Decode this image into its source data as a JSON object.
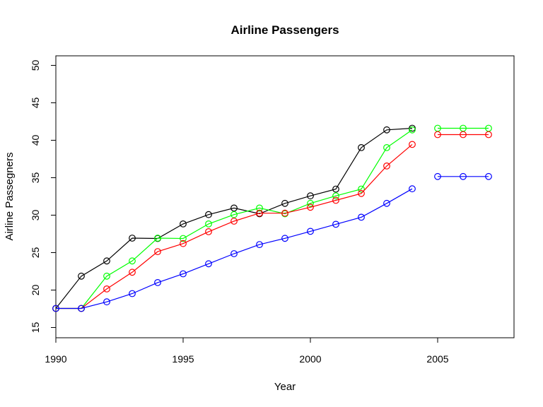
{
  "chart_data": {
    "type": "line",
    "title": "Airline Passengers",
    "xlabel": "Year",
    "ylabel": "Airline Passegners",
    "xlim": [
      1990,
      2008
    ],
    "ylim": [
      15,
      50
    ],
    "x_ticks": [
      "1990",
      "1995",
      "2000",
      "2005"
    ],
    "y_ticks": [
      "15",
      "20",
      "25",
      "30",
      "35",
      "40",
      "45",
      "50"
    ],
    "grid": false,
    "legend": "none",
    "series": [
      {
        "color": "#000000",
        "x": [
          1990,
          1991,
          1992,
          1993,
          1994,
          1995,
          1996,
          1997,
          1998,
          1999,
          2000,
          2001,
          2002,
          2003,
          2004
        ],
        "values": [
          17.55,
          21.86,
          23.89,
          26.93,
          26.89,
          28.83,
          30.08,
          30.95,
          30.19,
          31.58,
          32.58,
          33.48,
          39.02,
          41.39,
          41.6
        ],
        "connected": true
      },
      {
        "color": "#00ff00",
        "x": [
          1990,
          1991,
          1992,
          1993,
          1994,
          1995,
          1996,
          1997,
          1998,
          1999,
          2000,
          2001,
          2002,
          2003,
          2004
        ],
        "values": [
          17.55,
          17.55,
          21.86,
          23.89,
          26.93,
          26.89,
          28.83,
          30.08,
          30.95,
          30.19,
          31.58,
          32.58,
          33.48,
          39.02,
          41.39
        ],
        "connected": true
      },
      {
        "color": "#ff0000",
        "x": [
          1990,
          1991,
          1992,
          1993,
          1994,
          1995,
          1996,
          1997,
          1998,
          1999,
          2000,
          2001,
          2002,
          2003,
          2004
        ],
        "values": [
          17.55,
          17.55,
          20.15,
          22.38,
          25.13,
          26.21,
          27.79,
          29.2,
          30.26,
          30.26,
          31.06,
          31.98,
          32.9,
          36.57,
          39.44
        ],
        "connected": true
      },
      {
        "color": "#0000ff",
        "x": [
          1990,
          1991,
          1992,
          1993,
          1994,
          1995,
          1996,
          1997,
          1998,
          1999,
          2000,
          2001,
          2002,
          2003,
          2004
        ],
        "values": [
          17.55,
          17.55,
          18.42,
          19.53,
          21.0,
          22.17,
          23.51,
          24.86,
          26.08,
          26.91,
          27.84,
          28.78,
          29.73,
          31.58,
          33.52
        ],
        "connected": true
      },
      {
        "color": "#00ff00",
        "x": [
          2005,
          2006,
          2007
        ],
        "values": [
          41.6,
          41.6,
          41.6
        ],
        "connected": true
      },
      {
        "color": "#ff0000",
        "x": [
          2005,
          2006,
          2007
        ],
        "values": [
          40.75,
          40.75,
          40.75
        ],
        "connected": true
      },
      {
        "color": "#0000ff",
        "x": [
          2005,
          2006,
          2007
        ],
        "values": [
          35.16,
          35.16,
          35.16
        ],
        "connected": true
      }
    ]
  }
}
